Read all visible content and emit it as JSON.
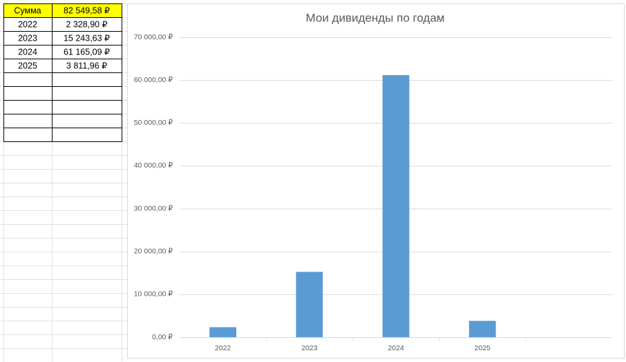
{
  "table": {
    "rows": [
      [
        "Сумма",
        "82 549,58 ₽"
      ],
      [
        "2022",
        "2 328,90 ₽"
      ],
      [
        "2023",
        "15 243,63 ₽"
      ],
      [
        "2024",
        "61 165,09 ₽"
      ],
      [
        "2025",
        "3 811,96 ₽"
      ]
    ]
  },
  "chart_data": {
    "type": "bar",
    "title": "Мои дивиденды по годам",
    "categories": [
      "2022",
      "2023",
      "2024",
      "2025",
      null
    ],
    "values": [
      2328.9,
      15243.63,
      61165.09,
      3811.96,
      null
    ],
    "color": "#5b9bd5",
    "ylim": [
      0,
      70000
    ],
    "yticks": [
      {
        "value": 0,
        "label": "0,00 ₽"
      },
      {
        "value": 10000,
        "label": "10 000,00 ₽"
      },
      {
        "value": 20000,
        "label": "20 000,00 ₽"
      },
      {
        "value": 30000,
        "label": "30 000,00 ₽"
      },
      {
        "value": 40000,
        "label": "40 000,00 ₽"
      },
      {
        "value": 50000,
        "label": "50 000,00 ₽"
      },
      {
        "value": 60000,
        "label": "60 000,00 ₽"
      },
      {
        "value": 70000,
        "label": "70 000,00 ₽"
      }
    ],
    "grid": true
  }
}
